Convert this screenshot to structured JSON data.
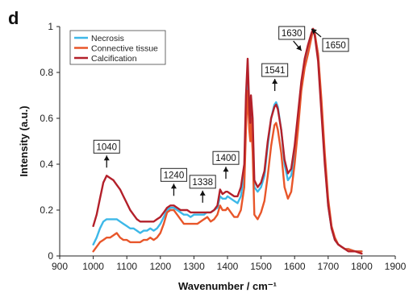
{
  "panel_label": "d",
  "chart_data": {
    "type": "line",
    "xlabel": "Wavenumber / cm⁻¹",
    "ylabel": "Intensity (a.u.)",
    "xlim": [
      900,
      1900
    ],
    "ylim": [
      0,
      1
    ],
    "xticks": [
      900,
      1000,
      1100,
      1200,
      1300,
      1400,
      1500,
      1600,
      1700,
      1800,
      1900
    ],
    "yticks": [
      0,
      0.2,
      0.4,
      0.6,
      0.8,
      1
    ],
    "ytick_labels": [
      "0",
      "0.2",
      "0.4",
      "0.6",
      "0.8",
      "1"
    ],
    "grid": false,
    "legend_position": "top-left",
    "series": [
      {
        "name": "Necrosis",
        "color": "#3db8e8",
        "points": [
          [
            1000,
            0.05
          ],
          [
            1010,
            0.08
          ],
          [
            1020,
            0.12
          ],
          [
            1030,
            0.15
          ],
          [
            1040,
            0.16
          ],
          [
            1060,
            0.16
          ],
          [
            1070,
            0.16
          ],
          [
            1080,
            0.15
          ],
          [
            1090,
            0.14
          ],
          [
            1100,
            0.13
          ],
          [
            1110,
            0.12
          ],
          [
            1120,
            0.12
          ],
          [
            1130,
            0.11
          ],
          [
            1140,
            0.1
          ],
          [
            1150,
            0.11
          ],
          [
            1160,
            0.11
          ],
          [
            1170,
            0.12
          ],
          [
            1180,
            0.11
          ],
          [
            1190,
            0.12
          ],
          [
            1200,
            0.14
          ],
          [
            1210,
            0.17
          ],
          [
            1220,
            0.2
          ],
          [
            1230,
            0.21
          ],
          [
            1240,
            0.21
          ],
          [
            1250,
            0.2
          ],
          [
            1260,
            0.19
          ],
          [
            1270,
            0.18
          ],
          [
            1280,
            0.18
          ],
          [
            1290,
            0.17
          ],
          [
            1300,
            0.18
          ],
          [
            1310,
            0.18
          ],
          [
            1320,
            0.18
          ],
          [
            1330,
            0.18
          ],
          [
            1338,
            0.19
          ],
          [
            1350,
            0.19
          ],
          [
            1360,
            0.2
          ],
          [
            1370,
            0.21
          ],
          [
            1378,
            0.26
          ],
          [
            1385,
            0.25
          ],
          [
            1395,
            0.25
          ],
          [
            1400,
            0.26
          ],
          [
            1410,
            0.25
          ],
          [
            1420,
            0.24
          ],
          [
            1430,
            0.23
          ],
          [
            1440,
            0.26
          ],
          [
            1450,
            0.36
          ],
          [
            1455,
            0.6
          ],
          [
            1460,
            0.82
          ],
          [
            1465,
            0.6
          ],
          [
            1468,
            0.55
          ],
          [
            1470,
            0.66
          ],
          [
            1475,
            0.55
          ],
          [
            1480,
            0.3
          ],
          [
            1490,
            0.28
          ],
          [
            1500,
            0.3
          ],
          [
            1510,
            0.35
          ],
          [
            1520,
            0.48
          ],
          [
            1530,
            0.6
          ],
          [
            1540,
            0.66
          ],
          [
            1545,
            0.67
          ],
          [
            1550,
            0.65
          ],
          [
            1560,
            0.55
          ],
          [
            1570,
            0.4
          ],
          [
            1580,
            0.33
          ],
          [
            1590,
            0.35
          ],
          [
            1600,
            0.45
          ],
          [
            1610,
            0.6
          ],
          [
            1620,
            0.75
          ],
          [
            1630,
            0.84
          ],
          [
            1640,
            0.9
          ],
          [
            1650,
            0.96
          ],
          [
            1655,
            0.98
          ],
          [
            1660,
            0.96
          ],
          [
            1670,
            0.88
          ],
          [
            1680,
            0.65
          ],
          [
            1690,
            0.42
          ],
          [
            1700,
            0.22
          ],
          [
            1710,
            0.12
          ],
          [
            1720,
            0.07
          ],
          [
            1730,
            0.05
          ],
          [
            1740,
            0.04
          ],
          [
            1750,
            0.03
          ],
          [
            1760,
            0.03
          ],
          [
            1780,
            0.02
          ],
          [
            1800,
            0.02
          ]
        ]
      },
      {
        "name": "Connective tissue",
        "color": "#e8562a",
        "points": [
          [
            1000,
            0.02
          ],
          [
            1010,
            0.04
          ],
          [
            1020,
            0.06
          ],
          [
            1030,
            0.07
          ],
          [
            1040,
            0.08
          ],
          [
            1050,
            0.08
          ],
          [
            1060,
            0.09
          ],
          [
            1070,
            0.1
          ],
          [
            1080,
            0.08
          ],
          [
            1090,
            0.07
          ],
          [
            1100,
            0.07
          ],
          [
            1110,
            0.06
          ],
          [
            1120,
            0.06
          ],
          [
            1130,
            0.06
          ],
          [
            1140,
            0.06
          ],
          [
            1150,
            0.07
          ],
          [
            1160,
            0.07
          ],
          [
            1170,
            0.08
          ],
          [
            1180,
            0.07
          ],
          [
            1190,
            0.08
          ],
          [
            1200,
            0.1
          ],
          [
            1210,
            0.14
          ],
          [
            1220,
            0.19
          ],
          [
            1230,
            0.2
          ],
          [
            1240,
            0.2
          ],
          [
            1250,
            0.18
          ],
          [
            1260,
            0.16
          ],
          [
            1270,
            0.14
          ],
          [
            1280,
            0.14
          ],
          [
            1290,
            0.14
          ],
          [
            1300,
            0.14
          ],
          [
            1310,
            0.14
          ],
          [
            1320,
            0.15
          ],
          [
            1330,
            0.16
          ],
          [
            1340,
            0.17
          ],
          [
            1350,
            0.15
          ],
          [
            1360,
            0.16
          ],
          [
            1370,
            0.18
          ],
          [
            1378,
            0.22
          ],
          [
            1385,
            0.2
          ],
          [
            1395,
            0.2
          ],
          [
            1400,
            0.21
          ],
          [
            1410,
            0.19
          ],
          [
            1420,
            0.17
          ],
          [
            1430,
            0.17
          ],
          [
            1440,
            0.2
          ],
          [
            1450,
            0.3
          ],
          [
            1455,
            0.55
          ],
          [
            1460,
            0.72
          ],
          [
            1465,
            0.55
          ],
          [
            1468,
            0.5
          ],
          [
            1470,
            0.6
          ],
          [
            1475,
            0.45
          ],
          [
            1480,
            0.18
          ],
          [
            1490,
            0.16
          ],
          [
            1500,
            0.19
          ],
          [
            1510,
            0.24
          ],
          [
            1520,
            0.35
          ],
          [
            1530,
            0.48
          ],
          [
            1540,
            0.57
          ],
          [
            1545,
            0.58
          ],
          [
            1550,
            0.55
          ],
          [
            1560,
            0.45
          ],
          [
            1570,
            0.3
          ],
          [
            1580,
            0.25
          ],
          [
            1590,
            0.28
          ],
          [
            1600,
            0.4
          ],
          [
            1610,
            0.55
          ],
          [
            1620,
            0.72
          ],
          [
            1630,
            0.82
          ],
          [
            1640,
            0.88
          ],
          [
            1650,
            0.95
          ],
          [
            1655,
            0.99
          ],
          [
            1660,
            0.97
          ],
          [
            1670,
            0.88
          ],
          [
            1680,
            0.68
          ],
          [
            1690,
            0.45
          ],
          [
            1700,
            0.25
          ],
          [
            1710,
            0.13
          ],
          [
            1720,
            0.08
          ],
          [
            1730,
            0.05
          ],
          [
            1740,
            0.04
          ],
          [
            1750,
            0.03
          ],
          [
            1760,
            0.03
          ],
          [
            1780,
            0.02
          ],
          [
            1800,
            0.02
          ]
        ]
      },
      {
        "name": "Calcification",
        "color": "#b3202a",
        "points": [
          [
            1000,
            0.13
          ],
          [
            1010,
            0.18
          ],
          [
            1020,
            0.25
          ],
          [
            1030,
            0.32
          ],
          [
            1040,
            0.35
          ],
          [
            1050,
            0.34
          ],
          [
            1060,
            0.33
          ],
          [
            1070,
            0.31
          ],
          [
            1080,
            0.29
          ],
          [
            1090,
            0.26
          ],
          [
            1100,
            0.23
          ],
          [
            1110,
            0.2
          ],
          [
            1120,
            0.18
          ],
          [
            1130,
            0.16
          ],
          [
            1140,
            0.15
          ],
          [
            1150,
            0.15
          ],
          [
            1160,
            0.15
          ],
          [
            1170,
            0.15
          ],
          [
            1180,
            0.15
          ],
          [
            1190,
            0.16
          ],
          [
            1200,
            0.17
          ],
          [
            1210,
            0.19
          ],
          [
            1220,
            0.21
          ],
          [
            1230,
            0.22
          ],
          [
            1240,
            0.22
          ],
          [
            1250,
            0.21
          ],
          [
            1260,
            0.2
          ],
          [
            1270,
            0.2
          ],
          [
            1280,
            0.2
          ],
          [
            1290,
            0.19
          ],
          [
            1300,
            0.19
          ],
          [
            1310,
            0.19
          ],
          [
            1320,
            0.19
          ],
          [
            1330,
            0.19
          ],
          [
            1340,
            0.19
          ],
          [
            1350,
            0.19
          ],
          [
            1360,
            0.2
          ],
          [
            1370,
            0.22
          ],
          [
            1378,
            0.29
          ],
          [
            1385,
            0.27
          ],
          [
            1395,
            0.28
          ],
          [
            1400,
            0.28
          ],
          [
            1410,
            0.27
          ],
          [
            1420,
            0.26
          ],
          [
            1430,
            0.26
          ],
          [
            1440,
            0.3
          ],
          [
            1450,
            0.4
          ],
          [
            1455,
            0.7
          ],
          [
            1460,
            0.86
          ],
          [
            1465,
            0.65
          ],
          [
            1468,
            0.58
          ],
          [
            1470,
            0.7
          ],
          [
            1475,
            0.6
          ],
          [
            1480,
            0.33
          ],
          [
            1490,
            0.3
          ],
          [
            1500,
            0.32
          ],
          [
            1510,
            0.37
          ],
          [
            1520,
            0.5
          ],
          [
            1530,
            0.6
          ],
          [
            1540,
            0.65
          ],
          [
            1545,
            0.66
          ],
          [
            1550,
            0.64
          ],
          [
            1560,
            0.55
          ],
          [
            1570,
            0.42
          ],
          [
            1580,
            0.36
          ],
          [
            1590,
            0.38
          ],
          [
            1600,
            0.48
          ],
          [
            1610,
            0.62
          ],
          [
            1620,
            0.76
          ],
          [
            1630,
            0.86
          ],
          [
            1640,
            0.92
          ],
          [
            1650,
            0.97
          ],
          [
            1655,
            0.99
          ],
          [
            1660,
            0.96
          ],
          [
            1670,
            0.85
          ],
          [
            1680,
            0.62
          ],
          [
            1690,
            0.4
          ],
          [
            1700,
            0.22
          ],
          [
            1710,
            0.12
          ],
          [
            1720,
            0.07
          ],
          [
            1730,
            0.05
          ],
          [
            1740,
            0.04
          ],
          [
            1750,
            0.03
          ],
          [
            1760,
            0.02
          ],
          [
            1780,
            0.02
          ],
          [
            1800,
            0.01
          ]
        ]
      }
    ],
    "annotations": [
      {
        "label": "1040",
        "x": 1040,
        "y": 0.35
      },
      {
        "label": "1240",
        "x": 1240,
        "y": 0.22
      },
      {
        "label": "1338",
        "x": 1338,
        "y": 0.19
      },
      {
        "label": "1400",
        "x": 1400,
        "y": 0.28
      },
      {
        "label": "1541",
        "x": 1541,
        "y": 0.67
      },
      {
        "label": "1630",
        "x": 1630,
        "y": 0.86
      },
      {
        "label": "1650",
        "x": 1650,
        "y": 0.99
      }
    ]
  }
}
